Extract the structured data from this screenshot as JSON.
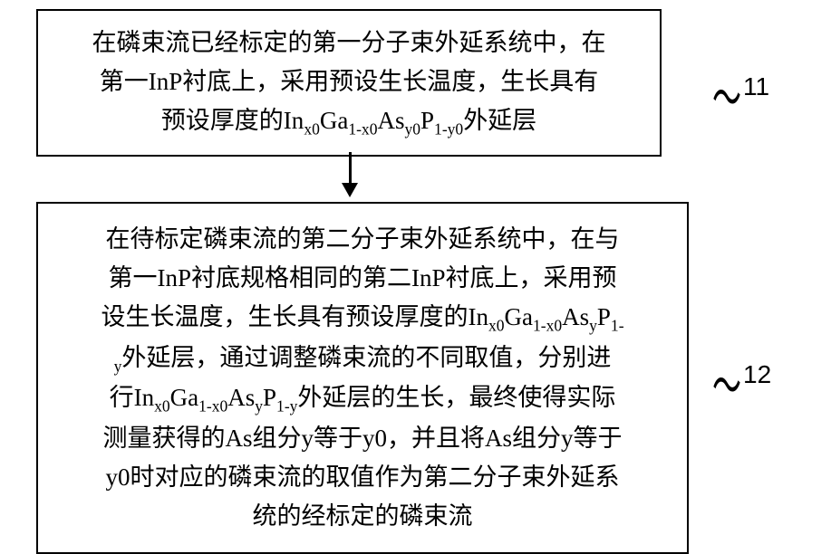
{
  "diagram": {
    "type": "flowchart",
    "background_color": "#ffffff",
    "border_color": "#000000",
    "border_width": 2.5,
    "text_color": "#000000",
    "font_family": "SimSun",
    "nodes": [
      {
        "id": "step1",
        "label_number": "11",
        "text_lines": [
          "在磷束流已经标定的第一分子束外延系统中，在",
          "第一InP衬底上，采用预设生长温度，生长具有",
          "预设厚度的In_{x0}Ga_{1-x0}As_{y0}P_{1-y0}外延层"
        ],
        "font_size": 27
      },
      {
        "id": "step2",
        "label_number": "12",
        "text_lines": [
          "在待标定磷束流的第二分子束外延系统中，在与",
          "第一InP衬底规格相同的第二InP衬底上，采用预",
          "设生长温度，生长具有预设厚度的In_{x0}Ga_{1-x0}As_{y}P_{1-",
          "y}外延层，通过调整磷束流的不同取值，分别进",
          "行In_{x0}Ga_{1-x0}As_{y}P_{1-y}外延层的生长，最终使得实际",
          "测量获得的As组分y等于y0，并且将As组分y等于",
          "y0时对应的磷束流的取值作为第二分子束外延系",
          "统的经标定的磷束流"
        ],
        "font_size": 27
      }
    ],
    "edges": [
      {
        "from": "step1",
        "to": "step2",
        "arrow_color": "#000000"
      }
    ],
    "label_font_size": 28,
    "curve_symbol": "〜"
  }
}
